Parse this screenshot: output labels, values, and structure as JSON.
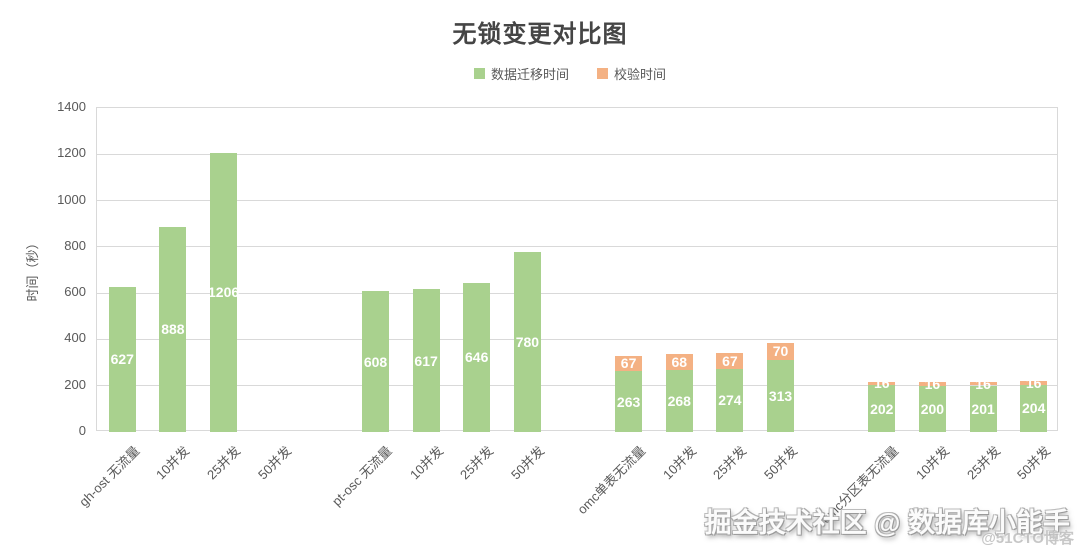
{
  "header": {
    "title": "无锁变更对比图"
  },
  "chart_data": {
    "type": "bar",
    "stacked": true,
    "title": "无锁变更对比图",
    "ylabel": "时间（秒）",
    "ylim": [
      0,
      1400
    ],
    "y_tick_step": 200,
    "grid": true,
    "legend_position": "top",
    "group_size": 4,
    "value_label_color": "#ffffff",
    "categories": [
      "gh-ost 无流量",
      "10并发",
      "25并发",
      "50并发",
      "pt-osc 无流量",
      "10并发",
      "25并发",
      "50并发",
      "omc单表无流量",
      "10并发",
      "25并发",
      "50并发",
      "omc分区表无流量",
      "10并发",
      "25并发",
      "50并发"
    ],
    "series": [
      {
        "name": "数据迁移时间",
        "color": "#a9d18e",
        "values": [
          627,
          888,
          1206,
          null,
          608,
          617,
          646,
          780,
          263,
          268,
          274,
          313,
          202,
          200,
          201,
          204
        ]
      },
      {
        "name": "校验时间",
        "color": "#f4b183",
        "values": [
          null,
          null,
          null,
          null,
          null,
          null,
          null,
          null,
          67,
          68,
          67,
          70,
          16,
          16,
          16,
          16
        ]
      }
    ]
  },
  "watermark": {
    "main": "掘金技术社区 @ 数据库小能手",
    "sub": "@51CTO博客"
  },
  "colors": {
    "migration_green": "#a9d18e",
    "verify_orange": "#f4b183",
    "gridline": "#d9d9d9",
    "axis_text": "#595959"
  }
}
